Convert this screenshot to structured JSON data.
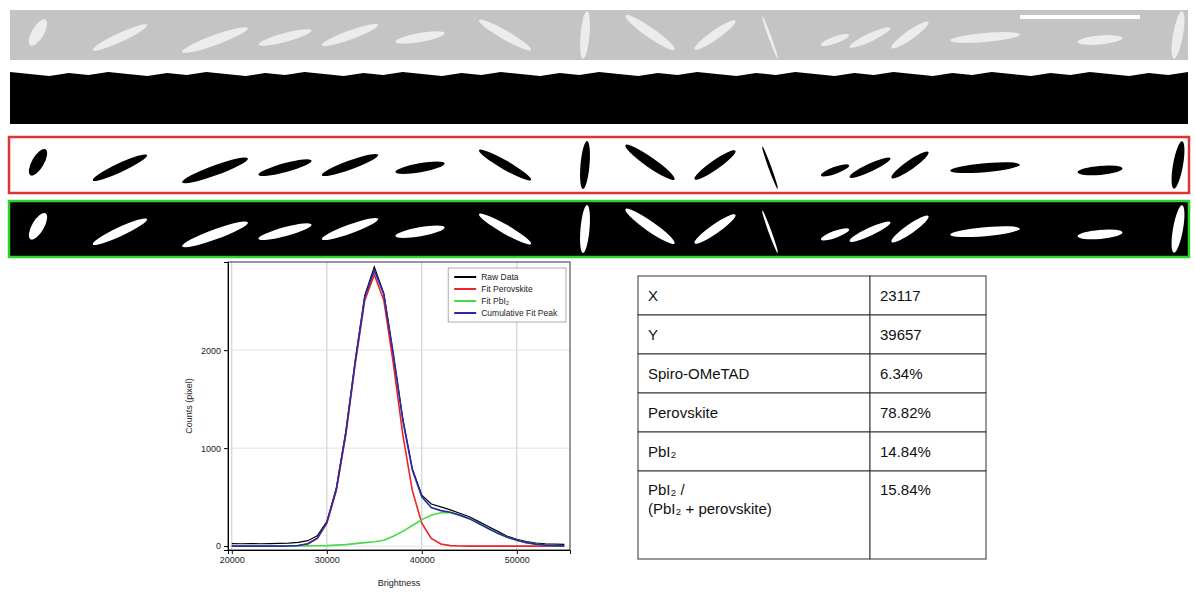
{
  "chart_data": {
    "type": "line",
    "x": [
      20000,
      21000,
      22000,
      23000,
      24000,
      25000,
      26000,
      27000,
      28000,
      29000,
      30000,
      31000,
      32000,
      33000,
      34000,
      35000,
      36000,
      37000,
      38000,
      39000,
      40000,
      41000,
      42000,
      43000,
      44000,
      45000,
      46000,
      47000,
      48000,
      49000,
      50000,
      51000,
      52000,
      53000,
      54000,
      55000
    ],
    "series": [
      {
        "name": "Raw Data",
        "color": "#000000",
        "values": [
          25,
          24,
          26,
          24,
          25,
          28,
          30,
          38,
          55,
          105,
          250,
          590,
          1170,
          1900,
          2560,
          2850,
          2580,
          1950,
          1300,
          790,
          520,
          430,
          400,
          370,
          335,
          300,
          250,
          200,
          150,
          100,
          70,
          45,
          30,
          22,
          20,
          18
        ]
      },
      {
        "name": "Fit Perovskite",
        "color": "#e8262a",
        "values": [
          0,
          0,
          0,
          0,
          0,
          0,
          1,
          5,
          22,
          78,
          233,
          568,
          1137,
          1864,
          2510,
          2770,
          2510,
          1864,
          1137,
          568,
          233,
          78,
          22,
          5,
          1,
          0,
          0,
          0,
          0,
          0,
          0,
          0,
          0,
          0,
          0,
          0
        ]
      },
      {
        "name": "Fit PbI₂",
        "color": "#44dd44",
        "values": [
          0,
          0,
          0,
          0,
          0,
          0,
          0,
          1,
          2,
          3,
          5,
          10,
          15,
          25,
          35,
          45,
          60,
          100,
          150,
          210,
          270,
          315,
          340,
          340,
          315,
          280,
          230,
          180,
          130,
          90,
          60,
          35,
          20,
          10,
          5,
          2
        ]
      },
      {
        "name": "Cumulative Fit Peak",
        "color": "#2a2aa8",
        "values": [
          0,
          0,
          0,
          0,
          0,
          0,
          1,
          6,
          24,
          81,
          238,
          578,
          1152,
          1889,
          2545,
          2815,
          2570,
          1964,
          1287,
          778,
          503,
          393,
          362,
          345,
          316,
          280,
          230,
          180,
          130,
          90,
          60,
          35,
          20,
          10,
          5,
          2
        ]
      }
    ],
    "x_label": "Brightness",
    "y_label": "Counts (pixel)",
    "xlim": [
      19600,
      55600
    ],
    "ylim": [
      -40,
      2900
    ],
    "xticks": [
      20000,
      30000,
      40000,
      50000
    ],
    "yticks": [
      0,
      1000,
      2000
    ],
    "grid": true,
    "legend": "upper right"
  },
  "table": {
    "rows": [
      [
        "X",
        "23117"
      ],
      [
        "Y",
        "39657"
      ],
      [
        "Spiro-OMeTAD",
        "6.34%"
      ],
      [
        "Perovskite",
        "78.82%"
      ],
      [
        "PbI₂",
        "14.84%"
      ],
      [
        "PbI₂ / (PbI₂ + perovskite)",
        "15.84%"
      ]
    ]
  }
}
